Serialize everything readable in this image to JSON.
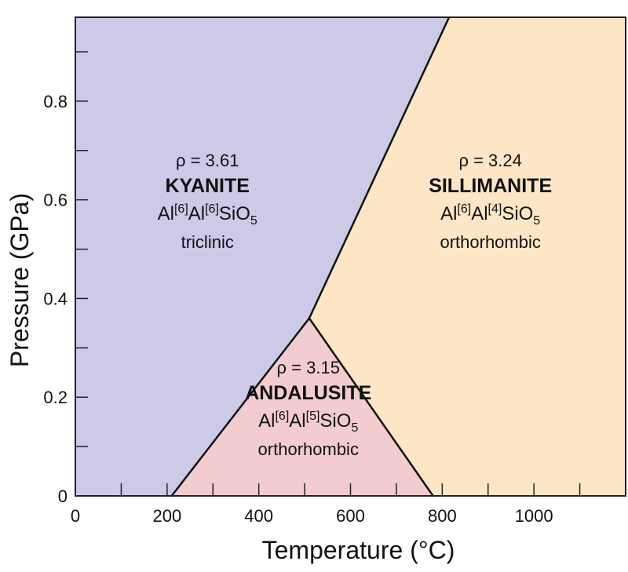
{
  "chart_data": {
    "type": "area",
    "title": "",
    "xlabel": "Temperature (°C)",
    "ylabel": "Pressure (GPa)",
    "xlim": [
      0,
      1200
    ],
    "ylim": [
      0,
      0.97
    ],
    "xticks_labeled": [
      0,
      200,
      400,
      600,
      800,
      1000
    ],
    "xticks_minor": [
      100,
      300,
      500,
      700,
      900,
      1100
    ],
    "yticks_labeled": [
      0,
      0.2,
      0.4,
      0.6,
      0.8
    ],
    "yticks_minor": [
      0.1,
      0.3,
      0.5,
      0.7,
      0.9
    ],
    "ytick_labels": [
      "0",
      "0.2",
      "0.4",
      "0.6",
      "0.8"
    ],
    "xtick_labels": [
      "0",
      "200",
      "400",
      "600",
      "800",
      "1000"
    ],
    "triple_point": {
      "T": 510,
      "P": 0.36
    },
    "boundaries": [
      {
        "name": "kyanite-sillimanite",
        "points": [
          [
            510,
            0.36
          ],
          [
            815,
            0.97
          ]
        ]
      },
      {
        "name": "kyanite-andalusite",
        "points": [
          [
            210,
            0
          ],
          [
            510,
            0.36
          ]
        ]
      },
      {
        "name": "andalusite-sillimanite",
        "points": [
          [
            510,
            0.36
          ],
          [
            780,
            0
          ]
        ]
      }
    ],
    "regions": [
      {
        "key": "kyanite",
        "name": "KYANITE",
        "density_label": "ρ  = 3.61",
        "formula": {
          "a": "Al",
          "s1": "[6]",
          "b": "Al",
          "s2": "[6]",
          "c": "SiO",
          "s3": "5"
        },
        "crystal_system": "triclinic",
        "color": "#cdcae8",
        "polygon": [
          [
            0,
            0
          ],
          [
            210,
            0
          ],
          [
            510,
            0.36
          ],
          [
            815,
            0.97
          ],
          [
            0,
            0.97
          ]
        ],
        "label_anchor": {
          "T": 288,
          "P": 0.62
        }
      },
      {
        "key": "sillimanite",
        "name": "SILLIMANITE",
        "density_label": "ρ  = 3.24",
        "formula": {
          "a": "Al",
          "s1": "[6]",
          "b": "Al",
          "s2": "[4]",
          "c": "SiO",
          "s3": "5"
        },
        "crystal_system": "orthorhombic",
        "color": "#fde6c6",
        "polygon": [
          [
            780,
            0
          ],
          [
            1200,
            0
          ],
          [
            1200,
            0.97
          ],
          [
            815,
            0.97
          ],
          [
            510,
            0.36
          ]
        ],
        "label_anchor": {
          "T": 905,
          "P": 0.62
        }
      },
      {
        "key": "andalusite",
        "name": "ANDALUSITE",
        "density_label": "ρ  = 3.15",
        "formula": {
          "a": "Al",
          "s1": "[6]",
          "b": "Al",
          "s2": "[5]",
          "c": "SiO",
          "s3": "5"
        },
        "crystal_system": "orthorhombic",
        "color": "#f3cccf",
        "polygon": [
          [
            210,
            0
          ],
          [
            780,
            0
          ],
          [
            510,
            0.36
          ]
        ],
        "label_anchor": {
          "T": 508,
          "P": 0.2
        }
      }
    ],
    "grid": false,
    "legend": "none"
  }
}
